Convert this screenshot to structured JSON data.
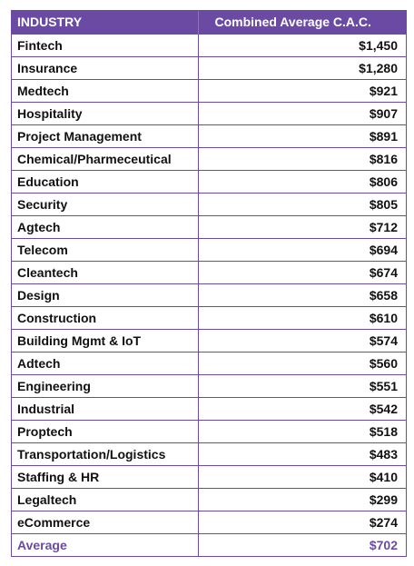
{
  "chart_data": {
    "type": "table",
    "headers": [
      "INDUSTRY",
      "Combined Average C.A.C."
    ],
    "rows": [
      {
        "industry": "Fintech",
        "cac": "$1,450"
      },
      {
        "industry": "Insurance",
        "cac": "$1,280"
      },
      {
        "industry": "Medtech",
        "cac": "$921"
      },
      {
        "industry": "Hospitality",
        "cac": "$907"
      },
      {
        "industry": "Project Management",
        "cac": "$891"
      },
      {
        "industry": "Chemical/Pharmeceutical",
        "cac": "$816"
      },
      {
        "industry": "Education",
        "cac": "$806"
      },
      {
        "industry": "Security",
        "cac": "$805"
      },
      {
        "industry": "Agtech",
        "cac": "$712"
      },
      {
        "industry": "Telecom",
        "cac": "$694"
      },
      {
        "industry": "Cleantech",
        "cac": "$674"
      },
      {
        "industry": "Design",
        "cac": "$658"
      },
      {
        "industry": "Construction",
        "cac": "$610"
      },
      {
        "industry": "Building Mgmt & IoT",
        "cac": "$574"
      },
      {
        "industry": "Adtech",
        "cac": "$560"
      },
      {
        "industry": "Engineering",
        "cac": "$551"
      },
      {
        "industry": "Industrial",
        "cac": "$542"
      },
      {
        "industry": "Proptech",
        "cac": "$518"
      },
      {
        "industry": "Transportation/Logistics",
        "cac": "$483"
      },
      {
        "industry": "Staffing & HR",
        "cac": "$410"
      },
      {
        "industry": "Legaltech",
        "cac": "$299"
      },
      {
        "industry": "eCommerce",
        "cac": "$274"
      }
    ],
    "summary": {
      "industry": "Average",
      "cac": "$702"
    }
  },
  "colors": {
    "header_bg": "#6a4aa3",
    "header_text": "#ffffff",
    "border": "#6a4aa3",
    "body_text": "#111111",
    "average_text": "#6a4aa3"
  }
}
